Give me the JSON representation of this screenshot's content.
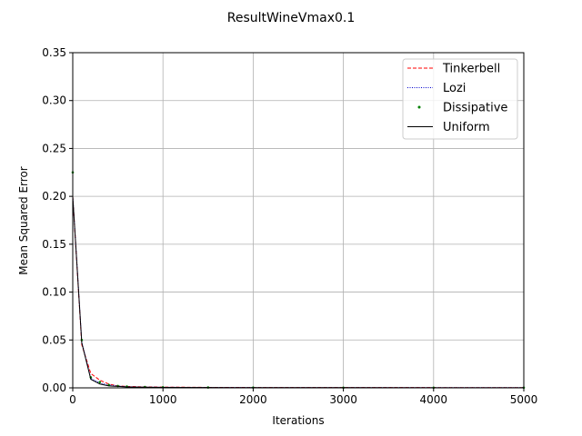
{
  "chart_data": {
    "type": "line",
    "title": "ResultWineVmax0.1",
    "xlabel": "Iterations",
    "ylabel": "Mean Squared Error",
    "xlim": [
      0,
      5000
    ],
    "ylim": [
      0,
      0.35
    ],
    "xticks": [
      0,
      1000,
      2000,
      3000,
      4000,
      5000
    ],
    "yticks": [
      0.0,
      0.05,
      0.1,
      0.15,
      0.2,
      0.25,
      0.3,
      0.35
    ],
    "xtick_labels": [
      "0",
      "1000",
      "2000",
      "3000",
      "4000",
      "5000"
    ],
    "ytick_labels": [
      "0.00",
      "0.05",
      "0.10",
      "0.15",
      "0.20",
      "0.25",
      "0.30",
      "0.35"
    ],
    "grid": true,
    "legend_position": "top-right",
    "x": [
      0,
      100,
      200,
      300,
      400,
      500,
      600,
      800,
      1000,
      1500,
      2000,
      3000,
      4000,
      5000
    ],
    "series": [
      {
        "name": "Tinkerbell",
        "color": "#ff0000",
        "style": "dashed",
        "values": [
          0.2,
          0.045,
          0.015,
          0.008,
          0.004,
          0.002,
          0.0015,
          0.001,
          0.0008,
          0.0005,
          0.0004,
          0.0003,
          0.0003,
          0.0002
        ]
      },
      {
        "name": "Lozi",
        "color": "#0000cc",
        "style": "dotted",
        "values": [
          0.2,
          0.048,
          0.01,
          0.005,
          0.003,
          0.002,
          0.0012,
          0.0008,
          0.0006,
          0.0004,
          0.0003,
          0.0002,
          0.0002,
          0.0002
        ]
      },
      {
        "name": "Dissipative",
        "color": "#008000",
        "style": "marker",
        "values": [
          0.225,
          0.05,
          0.011,
          0.006,
          0.003,
          0.002,
          0.0014,
          0.0009,
          0.0007,
          0.0004,
          0.0003,
          0.0002,
          0.0002,
          0.0002
        ]
      },
      {
        "name": "Uniform",
        "color": "#000000",
        "style": "solid",
        "values": [
          0.2,
          0.047,
          0.009,
          0.004,
          0.002,
          0.0015,
          0.001,
          0.0007,
          0.0005,
          0.0003,
          0.0002,
          0.0002,
          0.0001,
          0.0001
        ]
      }
    ]
  }
}
